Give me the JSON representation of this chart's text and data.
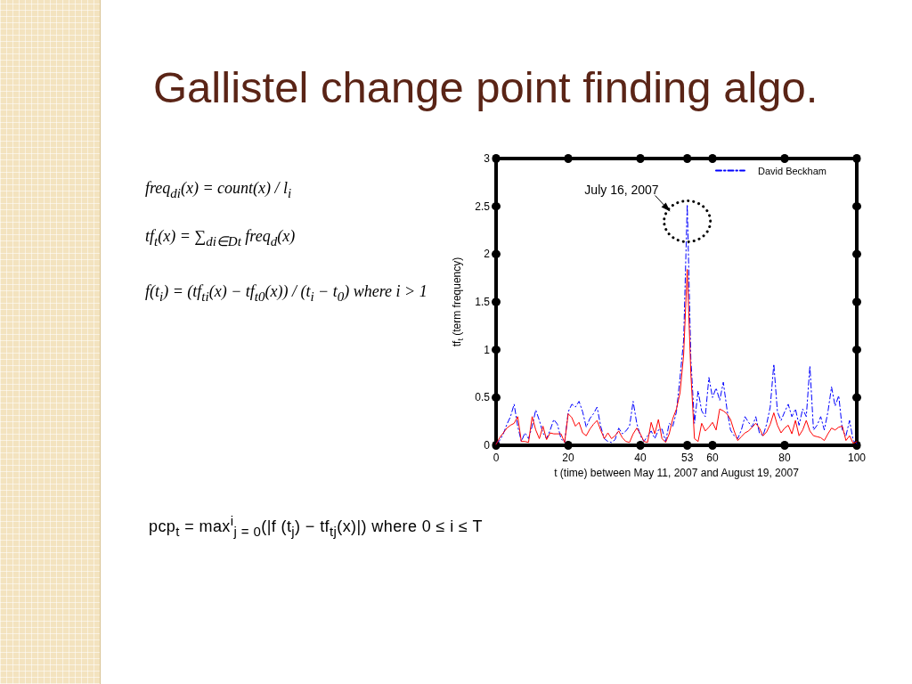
{
  "chart_data": {
    "type": "line",
    "title": "Gallistel change point finding algo.",
    "xlabel": "t (time) between May 11, 2007 and August 19, 2007",
    "ylabel": "tf$_{t}$ (term frequency)",
    "x": [
      0,
      1,
      2,
      3,
      4,
      5,
      6,
      7,
      8,
      9,
      10,
      11,
      12,
      13,
      14,
      15,
      16,
      17,
      18,
      19,
      20,
      21,
      22,
      23,
      24,
      25,
      26,
      27,
      28,
      29,
      30,
      31,
      32,
      33,
      34,
      35,
      36,
      37,
      38,
      39,
      40,
      41,
      42,
      43,
      44,
      45,
      46,
      47,
      48,
      49,
      50,
      51,
      52,
      53,
      54,
      55,
      56,
      57,
      58,
      59,
      60,
      61,
      62,
      63,
      64,
      65,
      66,
      67,
      68,
      69,
      70,
      71,
      72,
      73,
      74,
      75,
      76,
      77,
      78,
      79,
      80,
      81,
      82,
      83,
      84,
      85,
      86,
      87,
      88,
      89,
      90,
      91,
      92,
      93,
      94,
      95,
      96,
      97,
      98,
      99,
      100
    ],
    "series": [
      {
        "name": "David Beckham",
        "color": "#0000ff",
        "line_style": "dashed",
        "values": [
          0.02,
          0.05,
          0.12,
          0.22,
          0.3,
          0.43,
          0.2,
          0.04,
          0.13,
          0.07,
          0.2,
          0.37,
          0.26,
          0.13,
          0.07,
          0.16,
          0.27,
          0.22,
          0.07,
          0.03,
          0.35,
          0.43,
          0.4,
          0.46,
          0.35,
          0.19,
          0.28,
          0.33,
          0.4,
          0.2,
          0.07,
          0.04,
          0.03,
          0.06,
          0.18,
          0.12,
          0.15,
          0.2,
          0.46,
          0.23,
          0.1,
          0.04,
          0.1,
          0.15,
          0.07,
          0.16,
          0.17,
          0.04,
          0.23,
          0.2,
          0.35,
          0.71,
          1.1,
          2.52,
          0.9,
          0.23,
          0.57,
          0.36,
          0.3,
          0.71,
          0.5,
          0.6,
          0.47,
          0.66,
          0.38,
          0.16,
          0.1,
          0.07,
          0.16,
          0.3,
          0.24,
          0.19,
          0.3,
          0.13,
          0.1,
          0.22,
          0.4,
          0.85,
          0.35,
          0.26,
          0.35,
          0.43,
          0.3,
          0.38,
          0.21,
          0.38,
          0.3,
          0.83,
          0.16,
          0.21,
          0.3,
          0.16,
          0.35,
          0.61,
          0.41,
          0.52,
          0.16,
          0.1,
          0.26,
          0.05,
          0.02
        ]
      },
      {
        "color": "#ff0000",
        "line_style": "solid",
        "values": [
          0.01,
          0.08,
          0.13,
          0.18,
          0.21,
          0.23,
          0.3,
          0.04,
          0.04,
          0.03,
          0.3,
          0.16,
          0.07,
          0.2,
          0.06,
          0.13,
          0.12,
          0.12,
          0.12,
          0.03,
          0.33,
          0.29,
          0.2,
          0.24,
          0.13,
          0.1,
          0.17,
          0.22,
          0.26,
          0.16,
          0.07,
          0.13,
          0.07,
          0.1,
          0.15,
          0.08,
          0.04,
          0.03,
          0.12,
          0.18,
          0.12,
          0.04,
          0.03,
          0.24,
          0.12,
          0.27,
          0.07,
          0.03,
          0.12,
          0.28,
          0.38,
          0.55,
          0.95,
          1.84,
          0.75,
          0.07,
          0.04,
          0.23,
          0.15,
          0.19,
          0.24,
          0.16,
          0.38,
          0.36,
          0.33,
          0.27,
          0.15,
          0.05,
          0.09,
          0.13,
          0.15,
          0.19,
          0.23,
          0.18,
          0.1,
          0.14,
          0.22,
          0.34,
          0.21,
          0.13,
          0.18,
          0.21,
          0.12,
          0.26,
          0.1,
          0.16,
          0.26,
          0.15,
          0.1,
          0.09,
          0.08,
          0.05,
          0.12,
          0.18,
          0.16,
          0.19,
          0.2,
          0.05,
          0.1,
          0.02,
          0.04
        ]
      }
    ],
    "xlim": [
      0,
      100
    ],
    "xticks": [
      0,
      20,
      40,
      53,
      60,
      80,
      100
    ],
    "ylim": [
      0,
      3
    ],
    "yticks": [
      0,
      0.5,
      1,
      1.5,
      2,
      2.5,
      3
    ],
    "grid": false,
    "legend": "top right",
    "marker": "none",
    "annotations": [
      {
        "text": "July 16, 2007",
        "x": 53,
        "y": 2.52
      },
      "freq$_{di}$(x) = count(x) / l$_{i}$",
      "tf$_{t}$(x) = ∑$_{di∈Dt}$ freq$_{d}$(x)",
      "f(t$_{i}$) = (tf$_{ti}$(x) − tf$_{t0}$(x)) / (t$_{i}$ − t$_{0}$) where i > 1",
      "pcp$_{t}$ = max$^{i}$$_{j = 0}$(|f (t$_{j}$) − tf$_{tj}$(x)|) where 0 ≤ i ≤ T"
    ]
  }
}
